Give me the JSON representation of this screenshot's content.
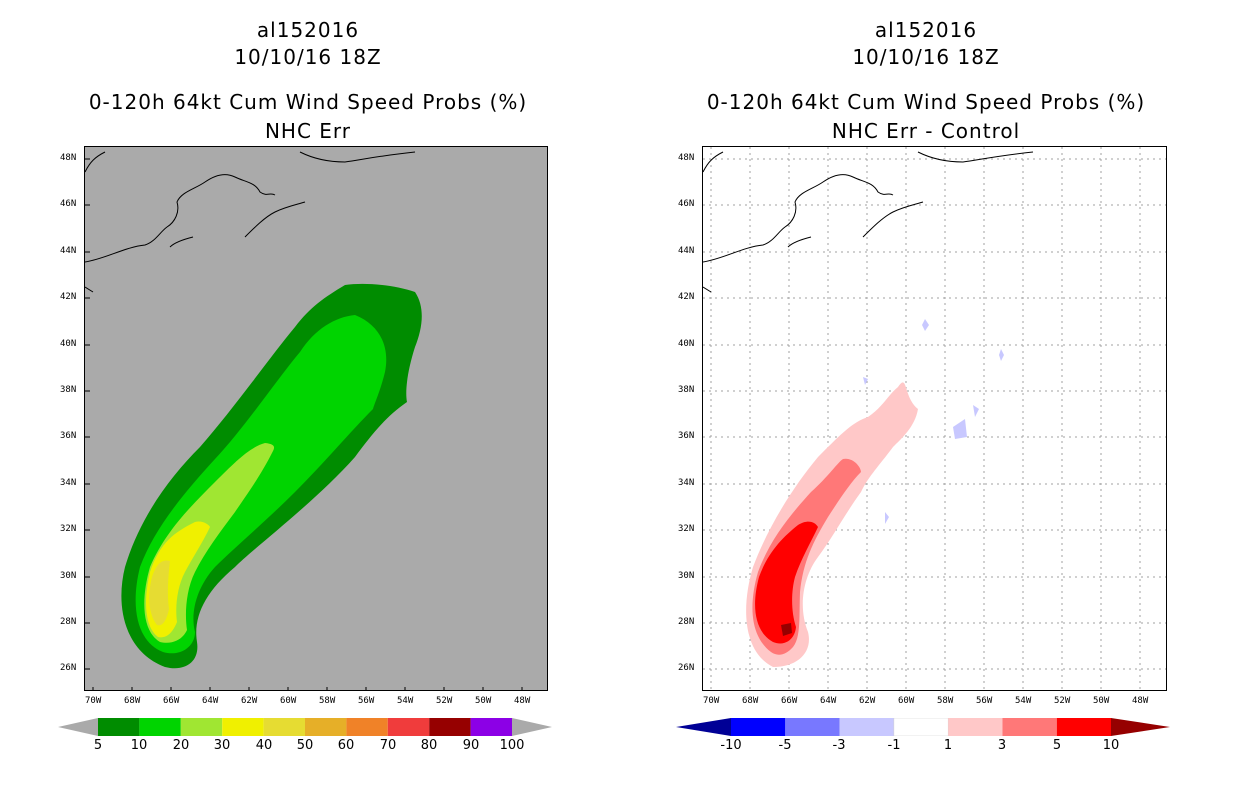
{
  "left_panel": {
    "title_line1": "al152016",
    "title_line2": "10/10/16 18Z",
    "title_line3": "0-120h 64kt Cum Wind Speed Probs (%)",
    "title_line4": "NHC Err",
    "colorbar": {
      "labels": [
        "5",
        "10",
        "20",
        "30",
        "40",
        "50",
        "60",
        "70",
        "80",
        "90",
        "100"
      ],
      "colors": [
        "#008c00",
        "#00d400",
        "#a0e632",
        "#f0f000",
        "#e6dc32",
        "#e6af28",
        "#f08228",
        "#f03c3c",
        "#960000",
        "#8c00e6"
      ],
      "arrow_color": "#aaaaaa"
    }
  },
  "right_panel": {
    "title_line1": "al152016",
    "title_line2": "10/10/16 18Z",
    "title_line3": "0-120h 64kt Cum Wind Speed Probs (%)",
    "title_line4": "NHC Err - Control",
    "colorbar": {
      "labels": [
        "-10",
        "-5",
        "-3",
        "-1",
        "1",
        "3",
        "5",
        "10"
      ],
      "colors": [
        "#0000ff",
        "#7878ff",
        "#c8c8ff",
        "#ffffff",
        "#ffc8c8",
        "#ff7878",
        "#ff0000"
      ],
      "arrow_low_color": "#000096",
      "arrow_high_color": "#960000"
    }
  },
  "axes": {
    "y_labels": [
      "48N",
      "46N",
      "44N",
      "42N",
      "40N",
      "38N",
      "36N",
      "34N",
      "32N",
      "30N",
      "28N",
      "26N"
    ],
    "x_labels": [
      "70W",
      "68W",
      "66W",
      "64W",
      "62W",
      "60W",
      "58W",
      "56W",
      "54W",
      "52W",
      "50W",
      "48W"
    ]
  },
  "colors": {
    "ocean_gray": "#aaaaaa",
    "coast": "#000000",
    "grid": "#a0a0a0"
  }
}
